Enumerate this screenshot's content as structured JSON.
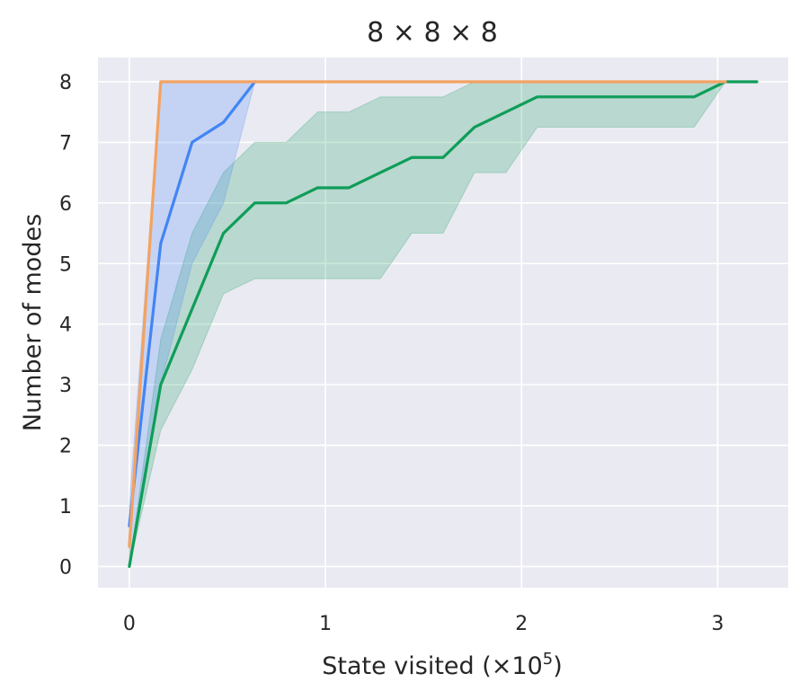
{
  "chart_data": {
    "type": "line",
    "title": "8 × 8 × 8",
    "xlabel": "State visited (×10",
    "xlabel_sup": "5",
    "xlabel_suffix": ")",
    "ylabel": "Number of modes",
    "xlim": [
      -0.16,
      3.36
    ],
    "ylim": [
      -0.35,
      8.4
    ],
    "xticks": [
      0,
      1,
      2,
      3
    ],
    "yticks": [
      0,
      1,
      2,
      3,
      4,
      5,
      6,
      7,
      8
    ],
    "grid": true,
    "background": "#EAEAF2",
    "series": [
      {
        "color": "#0F9D58",
        "x": [
          0,
          0.16,
          0.32,
          0.48,
          0.64,
          0.8,
          0.96,
          1.12,
          1.28,
          1.44,
          1.6,
          1.76,
          1.92,
          2.08,
          2.24,
          2.4,
          2.56,
          2.72,
          2.88,
          3.04,
          3.2
        ],
        "y": [
          0,
          3.0,
          4.25,
          5.5,
          6.0,
          6.0,
          6.25,
          6.25,
          6.5,
          6.75,
          6.75,
          7.25,
          7.5,
          7.75,
          7.75,
          7.75,
          7.75,
          7.75,
          7.75,
          8,
          8
        ],
        "lower": [
          0,
          2.25,
          3.25,
          4.5,
          4.75,
          4.75,
          4.75,
          4.75,
          4.75,
          5.5,
          5.5,
          6.5,
          6.5,
          7.25,
          7.25,
          7.25,
          7.25,
          7.25,
          7.25,
          8,
          8
        ],
        "upper": [
          0,
          3.75,
          5.5,
          6.5,
          7.0,
          7.0,
          7.5,
          7.5,
          7.75,
          7.75,
          7.75,
          8,
          8,
          8,
          8,
          8,
          8,
          8,
          8,
          8,
          8
        ]
      },
      {
        "color": "#4285F4",
        "x": [
          0,
          0.16,
          0.32,
          0.48,
          0.64
        ],
        "y": [
          0.67,
          5.33,
          7.0,
          7.33,
          8
        ],
        "lower": [
          0,
          3.0,
          5.0,
          6.0,
          8
        ],
        "upper": [
          1.0,
          8,
          8,
          8,
          8
        ]
      },
      {
        "color": "#F4A261",
        "x": [
          0,
          0.16,
          3.04
        ],
        "y": [
          0.33,
          8,
          8
        ],
        "lower": [
          0,
          8,
          8
        ],
        "upper": [
          0.67,
          8,
          8
        ]
      }
    ]
  }
}
